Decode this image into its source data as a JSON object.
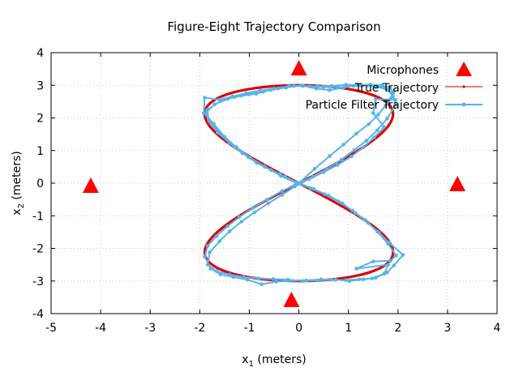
{
  "chart_data": {
    "type": "scatter",
    "title": "Figure-Eight Trajectory Comparison",
    "xlabel": {
      "base": "x",
      "sub": "1",
      "rest": " (meters)"
    },
    "ylabel": {
      "base": "x",
      "sub": "2",
      "rest": " (meters)"
    },
    "xlim": [
      -5,
      4
    ],
    "ylim": [
      -4,
      4
    ],
    "xticks": [
      -5,
      -4,
      -3,
      -2,
      -1,
      0,
      1,
      2,
      3,
      4
    ],
    "yticks": [
      -4,
      -3,
      -2,
      -1,
      0,
      1,
      2,
      3,
      4
    ],
    "grid": true,
    "legend_position": "top-right",
    "series": [
      {
        "name": "Microphones",
        "kind": "markers",
        "marker": "triangle",
        "color": "#ff0000",
        "points": [
          [
            0.0,
            3.5
          ],
          [
            -4.2,
            -0.1
          ],
          [
            3.2,
            -0.05
          ],
          [
            -0.15,
            -3.6
          ]
        ]
      },
      {
        "name": "True Trajectory",
        "kind": "curve",
        "color": "#dd0000",
        "param": {
          "ax": 1.9,
          "ay": 3.0
        }
      },
      {
        "name": "Particle Filter Trajectory",
        "kind": "line-points",
        "color": "#56b4e9",
        "points": [
          [
            0.0,
            0.0
          ],
          [
            0.32,
            0.44
          ],
          [
            0.62,
            0.83
          ],
          [
            0.9,
            1.18
          ],
          [
            1.16,
            1.52
          ],
          [
            1.41,
            1.81
          ],
          [
            1.6,
            2.1
          ],
          [
            1.75,
            2.38
          ],
          [
            1.86,
            2.6
          ],
          [
            1.9,
            2.8
          ],
          [
            1.84,
            2.92
          ],
          [
            1.68,
            3.0
          ],
          [
            1.44,
            3.02
          ],
          [
            1.16,
            3.0
          ],
          [
            0.9,
            2.93
          ],
          [
            0.62,
            2.85
          ],
          [
            0.35,
            2.9
          ],
          [
            0.05,
            3.0
          ],
          [
            -0.26,
            2.93
          ],
          [
            -0.56,
            2.86
          ],
          [
            -0.86,
            2.74
          ],
          [
            -1.16,
            2.68
          ],
          [
            -1.44,
            2.58
          ],
          [
            -1.7,
            2.42
          ],
          [
            -1.86,
            2.18
          ],
          [
            -1.8,
            1.88
          ],
          [
            -1.64,
            1.55
          ],
          [
            -1.4,
            1.23
          ],
          [
            -1.14,
            0.92
          ],
          [
            -0.85,
            0.62
          ],
          [
            -0.56,
            0.4
          ],
          [
            -0.28,
            0.2
          ],
          [
            0.0,
            0.0
          ],
          [
            0.3,
            -0.18
          ],
          [
            0.6,
            -0.38
          ],
          [
            0.88,
            -0.62
          ],
          [
            1.14,
            -0.92
          ],
          [
            1.4,
            -1.22
          ],
          [
            1.62,
            -1.52
          ],
          [
            1.82,
            -1.82
          ],
          [
            2.1,
            -2.2
          ],
          [
            1.92,
            -2.52
          ],
          [
            1.78,
            -2.74
          ],
          [
            1.55,
            -2.9
          ],
          [
            1.3,
            -2.95
          ],
          [
            1.02,
            -3.0
          ],
          [
            0.74,
            -2.96
          ],
          [
            0.45,
            -2.95
          ],
          [
            0.15,
            -2.98
          ],
          [
            -0.15,
            -3.0
          ],
          [
            -0.46,
            -3.02
          ],
          [
            -0.75,
            -3.1
          ],
          [
            -1.04,
            -2.96
          ],
          [
            -1.32,
            -2.88
          ],
          [
            -1.58,
            -2.8
          ],
          [
            -1.78,
            -2.62
          ],
          [
            -1.9,
            -2.25
          ],
          [
            -1.84,
            -1.92
          ],
          [
            -1.66,
            -1.62
          ],
          [
            -1.44,
            -1.32
          ],
          [
            -1.2,
            -1.04
          ],
          [
            -0.93,
            -0.76
          ],
          [
            -0.64,
            -0.5
          ],
          [
            -0.34,
            -0.24
          ],
          [
            0.0,
            0.0
          ],
          [
            0.28,
            0.2
          ],
          [
            0.56,
            0.44
          ],
          [
            0.86,
            0.72
          ],
          [
            1.12,
            1.02
          ],
          [
            1.36,
            1.3
          ],
          [
            1.58,
            1.62
          ],
          [
            1.78,
            1.98
          ],
          [
            1.95,
            2.4
          ],
          [
            1.9,
            2.75
          ],
          [
            1.7,
            2.95
          ],
          [
            1.4,
            3.0
          ],
          [
            1.1,
            2.98
          ],
          [
            0.8,
            2.94
          ],
          [
            0.5,
            2.95
          ],
          [
            0.22,
            2.96
          ],
          [
            -0.1,
            2.98
          ],
          [
            -0.42,
            2.9
          ],
          [
            -0.72,
            2.8
          ],
          [
            -1.02,
            2.72
          ],
          [
            -1.3,
            2.64
          ],
          [
            -1.58,
            2.52
          ],
          [
            -1.85,
            2.25
          ],
          [
            -1.82,
            1.95
          ],
          [
            -1.58,
            1.5
          ],
          [
            -1.32,
            1.12
          ],
          [
            -1.02,
            0.8
          ],
          [
            -0.7,
            0.52
          ],
          [
            -0.38,
            0.28
          ],
          [
            -0.06,
            0.02
          ],
          [
            0.24,
            -0.16
          ],
          [
            0.52,
            -0.34
          ],
          [
            0.8,
            -0.56
          ],
          [
            1.08,
            -0.84
          ],
          [
            1.34,
            -1.14
          ],
          [
            1.58,
            -1.48
          ],
          [
            1.8,
            -1.86
          ],
          [
            1.96,
            -2.22
          ],
          [
            1.85,
            -2.38
          ],
          [
            1.5,
            -2.4
          ],
          [
            1.16,
            -2.62
          ],
          [
            1.8,
            -2.5
          ],
          [
            1.72,
            -2.78
          ],
          [
            1.48,
            -2.92
          ],
          [
            1.22,
            -2.95
          ],
          [
            0.95,
            -2.97
          ],
          [
            0.66,
            -2.96
          ],
          [
            0.38,
            -2.98
          ],
          [
            0.08,
            -3.0
          ],
          [
            -0.22,
            -2.96
          ],
          [
            -0.52,
            -2.94
          ],
          [
            -0.82,
            -2.92
          ],
          [
            -1.12,
            -2.88
          ],
          [
            -1.4,
            -2.8
          ],
          [
            -1.66,
            -2.7
          ],
          [
            -1.84,
            -2.5
          ],
          [
            -1.8,
            -2.12
          ],
          [
            -1.6,
            -1.78
          ],
          [
            -1.4,
            -1.48
          ],
          [
            -1.16,
            -1.18
          ],
          [
            -0.9,
            -0.9
          ],
          [
            -0.62,
            -0.62
          ],
          [
            -0.34,
            -0.36
          ],
          [
            -0.08,
            -0.1
          ],
          [
            0.2,
            0.12
          ],
          [
            0.5,
            0.34
          ],
          [
            0.78,
            0.56
          ],
          [
            1.06,
            0.82
          ],
          [
            1.3,
            1.1
          ],
          [
            1.52,
            1.4
          ],
          [
            1.72,
            1.72
          ],
          [
            1.5,
            2.15
          ],
          [
            1.55,
            2.58
          ],
          [
            1.95,
            2.55
          ],
          [
            1.8,
            2.85
          ],
          [
            1.55,
            2.98
          ],
          [
            1.25,
            3.0
          ],
          [
            0.95,
            3.02
          ],
          [
            0.66,
            2.98
          ],
          [
            0.38,
            2.97
          ],
          [
            0.08,
            2.98
          ],
          [
            -0.2,
            2.98
          ],
          [
            -0.5,
            2.9
          ],
          [
            -0.78,
            2.84
          ],
          [
            -1.06,
            2.76
          ],
          [
            -1.34,
            2.66
          ],
          [
            -1.6,
            2.56
          ],
          [
            -1.9,
            2.62
          ],
          [
            -1.92,
            2.15
          ],
          [
            -1.72,
            1.82
          ],
          [
            -1.5,
            1.42
          ],
          [
            -1.26,
            1.1
          ],
          [
            -0.98,
            0.78
          ],
          [
            -0.68,
            0.5
          ],
          [
            -0.36,
            0.22
          ],
          [
            -0.02,
            -0.02
          ]
        ]
      }
    ]
  }
}
